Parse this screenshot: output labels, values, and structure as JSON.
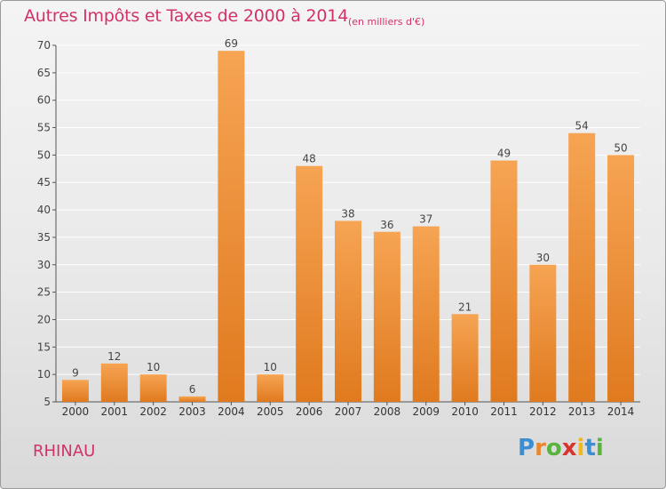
{
  "header": {
    "title": "Autres Impôts et Taxes de 2000 à 2014",
    "subtitle": "(en milliers d'€)"
  },
  "footer": {
    "commune": "RHINAU",
    "logo_text": "Proxiti"
  },
  "colors": {
    "accent": "#d2326a",
    "bar_top": "#f6a453",
    "bar_bottom": "#e07a1f",
    "axis": "#555555",
    "grid": "#ffffff"
  },
  "chart_data": {
    "type": "bar",
    "title": "Autres Impôts et Taxes de 2000 à 2014",
    "subtitle": "(en milliers d'€)",
    "categories": [
      "2000",
      "2001",
      "2002",
      "2003",
      "2004",
      "2005",
      "2006",
      "2007",
      "2008",
      "2009",
      "2010",
      "2011",
      "2012",
      "2013",
      "2014"
    ],
    "values": [
      9,
      12,
      10,
      6,
      69,
      10,
      48,
      38,
      36,
      37,
      21,
      49,
      30,
      54,
      50
    ],
    "data_labels": [
      "9",
      "12",
      "10",
      "6",
      "69",
      "10",
      "48",
      "38",
      "36",
      "37",
      "21",
      "49",
      "30",
      "54",
      "50"
    ],
    "ylim": [
      5,
      70
    ],
    "yticks": [
      5,
      10,
      15,
      20,
      25,
      30,
      35,
      40,
      45,
      50,
      55,
      60,
      65,
      70
    ],
    "xlabel": "",
    "ylabel": "",
    "grid": true
  }
}
